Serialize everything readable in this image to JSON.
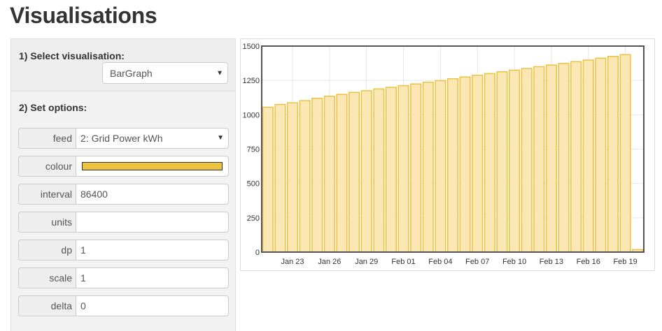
{
  "page": {
    "title": "Visualisations"
  },
  "panel": {
    "step1_label": "1) Select visualisation:",
    "visualisation_select": "BarGraph",
    "step2_label": "2) Set options:",
    "options": [
      {
        "key": "feed",
        "label": "feed",
        "value": "2: Grid Power kWh",
        "type": "select"
      },
      {
        "key": "colour",
        "label": "colour",
        "value": "",
        "type": "colour",
        "color": "#edc240"
      },
      {
        "key": "interval",
        "label": "interval",
        "value": "86400",
        "type": "text"
      },
      {
        "key": "units",
        "label": "units",
        "value": "",
        "type": "text"
      },
      {
        "key": "dp",
        "label": "dp",
        "value": "1",
        "type": "text"
      },
      {
        "key": "scale",
        "label": "scale",
        "value": "1",
        "type": "text"
      },
      {
        "key": "delta",
        "label": "delta",
        "value": "0",
        "type": "text"
      }
    ]
  },
  "chart_data": {
    "type": "bar",
    "ylim": [
      0,
      1500
    ],
    "y_ticks": [
      0,
      250,
      500,
      750,
      1000,
      1250,
      1500
    ],
    "x_ticks": [
      {
        "index": 2,
        "label": "Jan 23"
      },
      {
        "index": 5,
        "label": "Jan 26"
      },
      {
        "index": 8,
        "label": "Jan 29"
      },
      {
        "index": 11,
        "label": "Feb 01"
      },
      {
        "index": 14,
        "label": "Feb 04"
      },
      {
        "index": 17,
        "label": "Feb 07"
      },
      {
        "index": 20,
        "label": "Feb 10"
      },
      {
        "index": 23,
        "label": "Feb 13"
      },
      {
        "index": 26,
        "label": "Feb 16"
      },
      {
        "index": 29,
        "label": "Feb 19"
      }
    ],
    "values": [
      1055,
      1075,
      1087,
      1103,
      1120,
      1135,
      1148,
      1163,
      1175,
      1188,
      1200,
      1212,
      1224,
      1237,
      1249,
      1262,
      1275,
      1288,
      1300,
      1313,
      1325,
      1337,
      1350,
      1362,
      1374,
      1387,
      1398,
      1412,
      1425,
      1438,
      18
    ],
    "grid": true,
    "bar_fill": "#fae7b3",
    "bar_stroke": "#edc240"
  }
}
